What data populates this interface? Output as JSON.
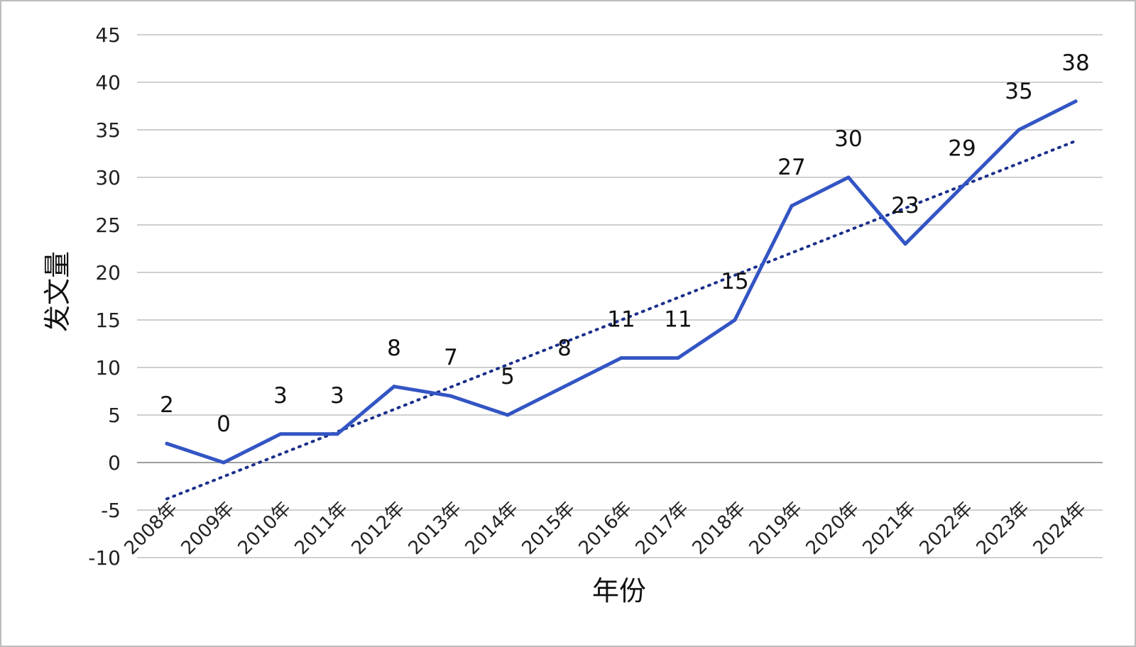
{
  "chart_data": {
    "type": "line",
    "title": "",
    "xlabel": "年份",
    "ylabel": "发文量",
    "categories": [
      "2008年",
      "2009年",
      "2010年",
      "2011年",
      "2012年",
      "2013年",
      "2014年",
      "2015年",
      "2016年",
      "2017年",
      "2018年",
      "2019年",
      "2020年",
      "2021年",
      "2022年",
      "2023年",
      "2024年"
    ],
    "series": [
      {
        "values": [
          2,
          0,
          3,
          3,
          8,
          7,
          5,
          8,
          11,
          11,
          15,
          27,
          30,
          23,
          29,
          35,
          38
        ],
        "data_labels": [
          "2",
          "0",
          "3",
          "3",
          "8",
          "7",
          "5",
          "8",
          "11",
          "11",
          "15",
          "27",
          "30",
          "23",
          "29",
          "35",
          "38"
        ],
        "color": "#3355c4"
      }
    ],
    "trendline": {
      "type": "linear",
      "style": "dotted",
      "color": "#1a2f8a"
    },
    "ylim": [
      -10,
      45
    ],
    "yticks": [
      -10,
      -5,
      0,
      5,
      10,
      15,
      20,
      25,
      30,
      35,
      40,
      45
    ],
    "ytick_labels": [
      "-10",
      "-5",
      "0",
      "5",
      "10",
      "15",
      "20",
      "25",
      "30",
      "35",
      "40",
      "45"
    ],
    "grid": true,
    "legend": "none"
  }
}
